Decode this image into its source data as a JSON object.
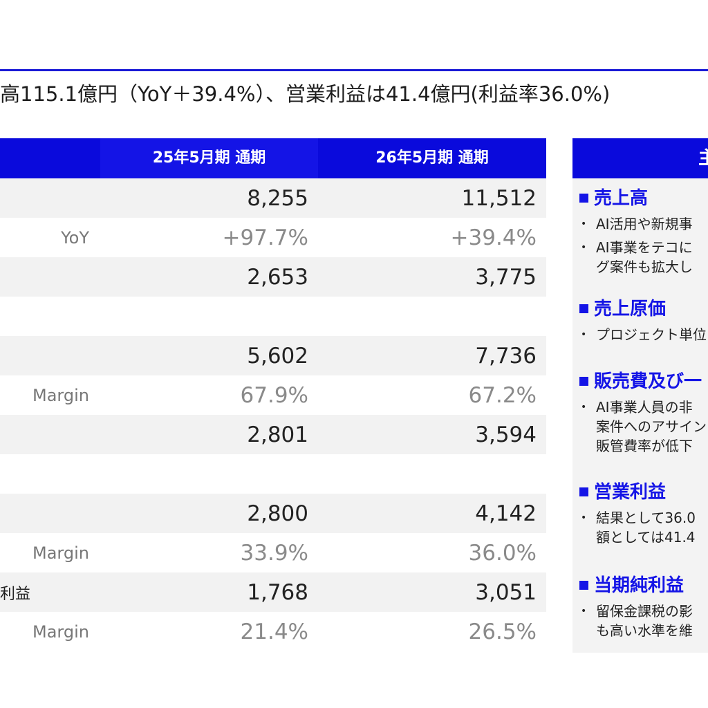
{
  "headline": "高115.1億円（YoY＋39.4%）、営業利益は41.4億円(利益率36.0%)",
  "table": {
    "col1_header": "25年5月期 通期",
    "col2_header": "26年5月期 通期",
    "rows": [
      {
        "label": "",
        "v1": "8,255",
        "v2": "11,512",
        "kind": "num",
        "shade": true
      },
      {
        "label": "YoY",
        "v1": "+97.7%",
        "v2": "+39.4%",
        "kind": "pct",
        "shade": false
      },
      {
        "label": "",
        "v1": "2,653",
        "v2": "3,775",
        "kind": "num",
        "shade": true
      },
      {
        "label": "",
        "v1": "",
        "v2": "",
        "kind": "blank",
        "shade": false
      },
      {
        "label": "",
        "v1": "5,602",
        "v2": "7,736",
        "kind": "num",
        "shade": true
      },
      {
        "label": "Margin",
        "v1": "67.9%",
        "v2": "67.2%",
        "kind": "pct",
        "shade": false
      },
      {
        "label": "",
        "v1": "2,801",
        "v2": "3,594",
        "kind": "num",
        "shade": true
      },
      {
        "label": "",
        "v1": "",
        "v2": "",
        "kind": "blank",
        "shade": false
      },
      {
        "label": "",
        "v1": "2,800",
        "v2": "4,142",
        "kind": "num",
        "shade": true
      },
      {
        "label": "Margin",
        "v1": "33.9%",
        "v2": "36.0%",
        "kind": "pct",
        "shade": false
      },
      {
        "label": "利益",
        "v1": "1,768",
        "v2": "3,051",
        "kind": "num",
        "shade": true
      },
      {
        "label": "Margin",
        "v1": "21.4%",
        "v2": "26.5%",
        "kind": "pct",
        "shade": false
      }
    ]
  },
  "panel": {
    "header": "主",
    "sections": [
      {
        "title": "売上高",
        "bullets": [
          [
            "AI活用や新規事"
          ],
          [
            "AI事業をテコに",
            "グ案件も拡大し"
          ]
        ]
      },
      {
        "title": "売上原価",
        "bullets": [
          [
            "プロジェクト単位"
          ]
        ]
      },
      {
        "title": "販売費及び一",
        "bullets": [
          [
            "AI事業人員の非",
            "案件へのアサイン",
            "販管費率が低下"
          ]
        ]
      },
      {
        "title": "営業利益",
        "bullets": [
          [
            "結果として36.0",
            "額としては41.4"
          ]
        ]
      },
      {
        "title": "当期純利益",
        "bullets": [
          [
            "留保金課税の影",
            "も高い水準を維"
          ]
        ]
      }
    ]
  }
}
